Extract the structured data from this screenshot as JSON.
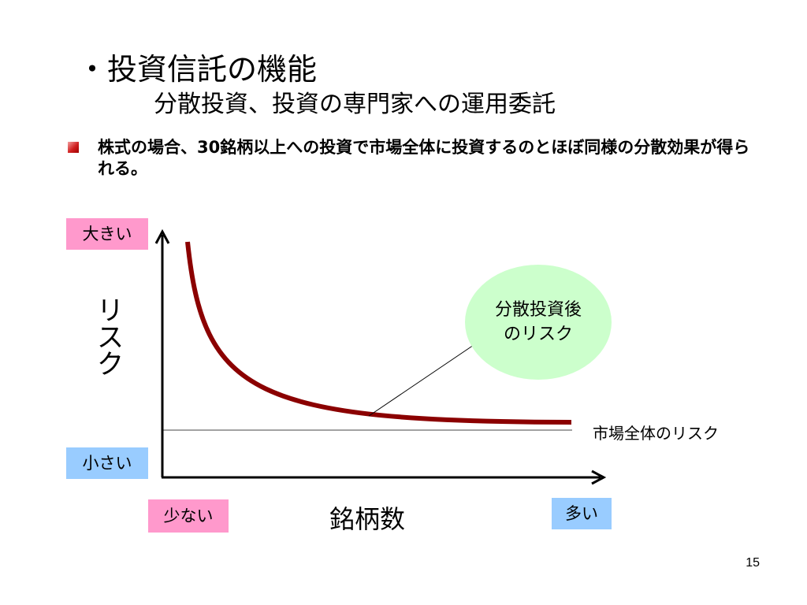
{
  "slide": {
    "title": "・投資信託の機能",
    "subtitle": "分散投資、投資の専門家への運用委託",
    "bullet_text": "株式の場合、30銘柄以上への投資で市場全体に投資するのとほぼ同様の分散効果が得られる。",
    "page_number": "15"
  },
  "diagram": {
    "y_axis_label": "リスク",
    "y_high_label": "大きい",
    "y_low_label": "小さい",
    "x_axis_label": "銘柄数",
    "x_low_label": "少ない",
    "x_high_label": "多い",
    "market_risk_label": "市場全体のリスク",
    "callout_line1": "分散投資後",
    "callout_line2": "のリスク",
    "colors": {
      "curve": "#8b0000",
      "pink_tag": "#ff99cc",
      "blue_tag": "#99ccff",
      "callout": "#ccffcc"
    }
  }
}
